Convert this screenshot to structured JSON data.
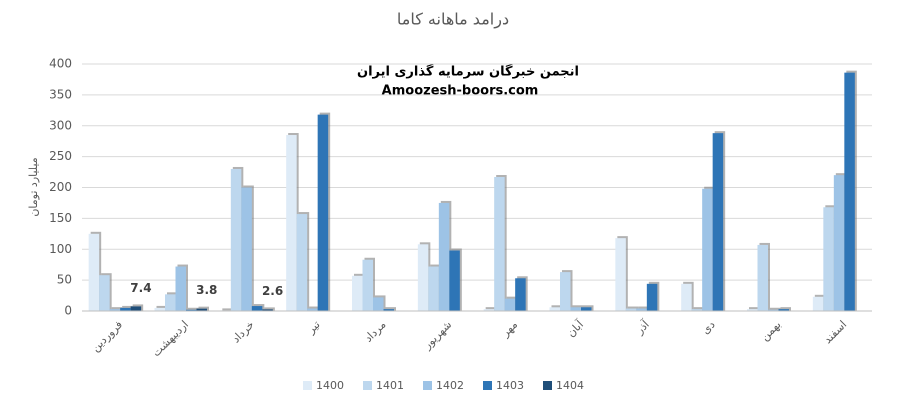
{
  "chart_data": {
    "type": "bar",
    "title": "درامد ماهانه کاما",
    "y_label": "میلیارد تومان",
    "annotations": [
      "انجمن خبرگان سرمایه گذاری ایران",
      "Amoozesh-boors.com"
    ],
    "categories": [
      "فروردین",
      "اردیبهشت",
      "خرداد",
      "تیر",
      "مرداد",
      "شهریور",
      "مهر",
      "آبان",
      "آذر",
      "دی",
      "بهمن",
      "اسفند"
    ],
    "series": [
      {
        "name": "1400",
        "color": "#deebf7",
        "values": [
          125,
          5,
          1,
          285,
          57,
          108,
          3,
          6,
          118,
          44,
          3,
          23
        ]
      },
      {
        "name": "1401",
        "color": "#bdd7ee",
        "values": [
          58,
          27,
          230,
          157,
          83,
          72,
          217,
          63,
          4,
          3,
          107,
          168
        ]
      },
      {
        "name": "1402",
        "color": "#9dc3e6",
        "values": [
          3,
          72,
          200,
          4,
          22,
          175,
          20,
          6,
          4,
          198,
          2,
          220
        ]
      },
      {
        "name": "1403",
        "color": "#2e75b6",
        "values": [
          5,
          2,
          8,
          318,
          3,
          98,
          53,
          6,
          44,
          288,
          3,
          386
        ]
      },
      {
        "name": "1404",
        "color": "#1f4e79",
        "values": [
          7.4,
          3.8,
          2.6,
          null,
          null,
          null,
          null,
          null,
          null,
          null,
          null,
          null
        ]
      }
    ],
    "data_labels_series": 4,
    "ylim": [
      0,
      400
    ],
    "yticks": [
      0,
      50,
      100,
      150,
      200,
      250,
      300,
      350,
      400
    ],
    "grid": true
  }
}
